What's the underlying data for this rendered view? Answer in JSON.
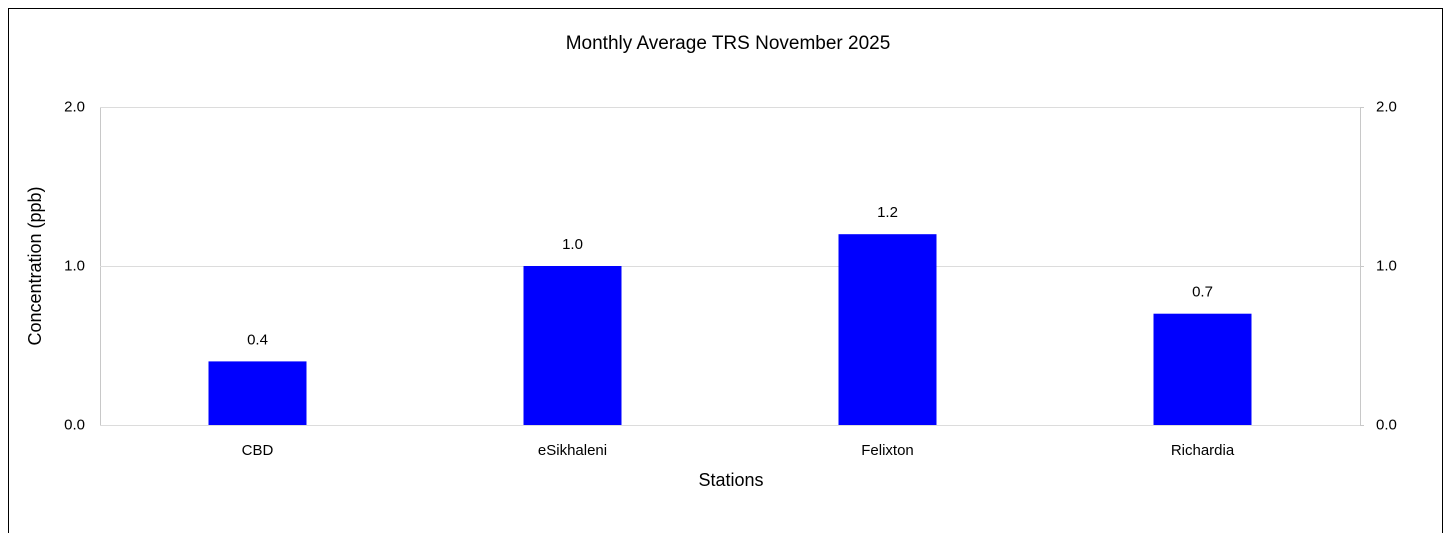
{
  "chart_data": {
    "type": "bar",
    "title": "Monthly Average  TRS November  2025",
    "x_label": "Stations",
    "y_label": "Concentration (ppb)",
    "categories": [
      "CBD",
      "eSikhaleni",
      "Felixton",
      "Richardia"
    ],
    "values": [
      0.4,
      1.0,
      1.2,
      0.7
    ],
    "value_labels": [
      "0.4",
      "1.0",
      "1.2",
      "0.7"
    ],
    "color": "#0000ff",
    "ylim": [
      0,
      2
    ],
    "yticks": [
      {
        "value": 0,
        "label": "0.0"
      },
      {
        "value": 1,
        "label": "1.0"
      },
      {
        "value": 2,
        "label": "2.0"
      }
    ],
    "y2lim": [
      0,
      2
    ],
    "y2ticks": [
      {
        "value": 0,
        "label": "0.0"
      },
      {
        "value": 1,
        "label": "1.0"
      },
      {
        "value": 2,
        "label": "2.0"
      }
    ],
    "grid": true
  }
}
